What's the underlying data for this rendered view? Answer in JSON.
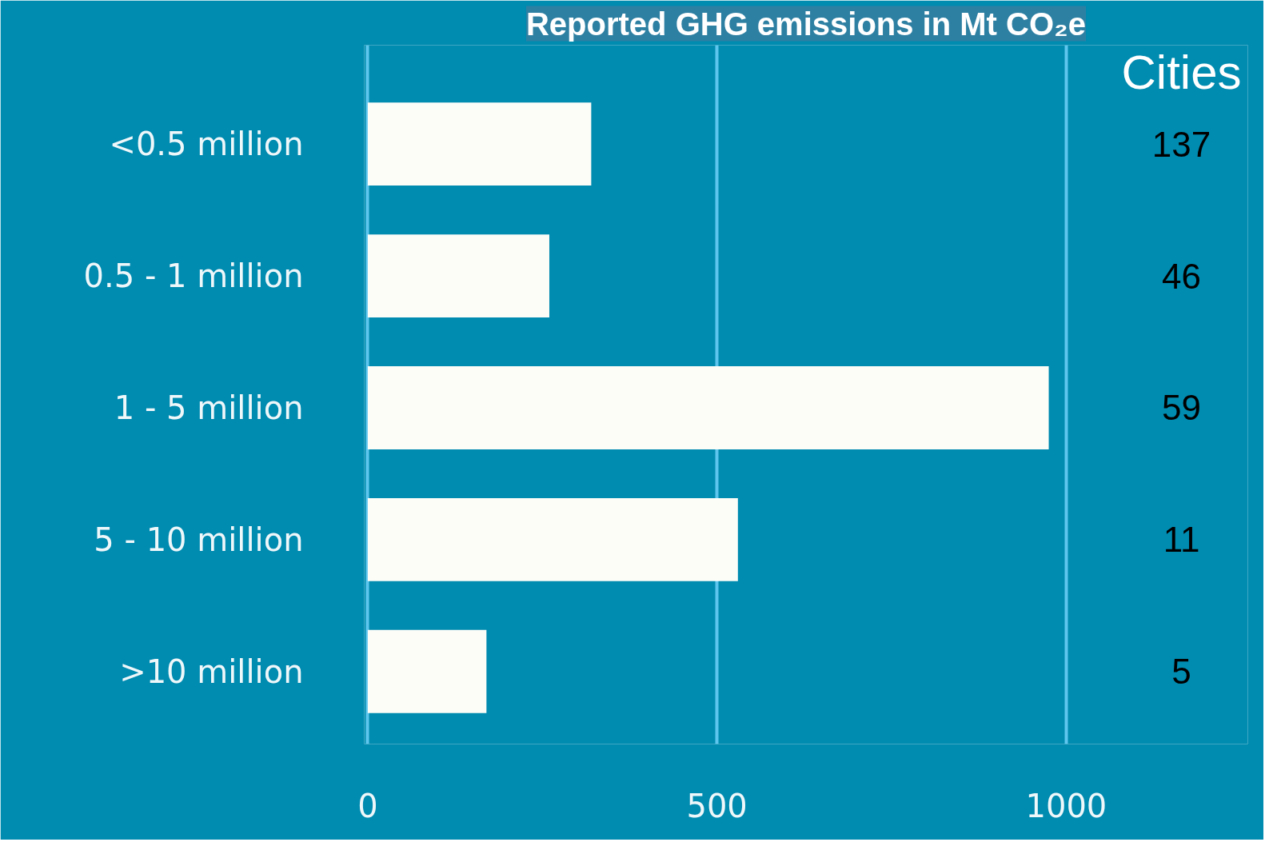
{
  "chart_data": {
    "type": "bar",
    "orientation": "horizontal",
    "title": "Reported GHG emissions in Mt CO₂e",
    "categories": [
      "<0.5 million",
      "0.5 - 1 million",
      "1 - 5 million",
      "5 - 10 million",
      ">10 million"
    ],
    "values": [
      320,
      260,
      975,
      530,
      170
    ],
    "color": "#fdfdf8",
    "xlim": [
      -5,
      1260
    ],
    "xticks": [
      0,
      500,
      1000
    ],
    "grid": "x",
    "annotations": [
      "Cities",
      "137",
      "46",
      "59",
      "11",
      "5"
    ]
  }
}
